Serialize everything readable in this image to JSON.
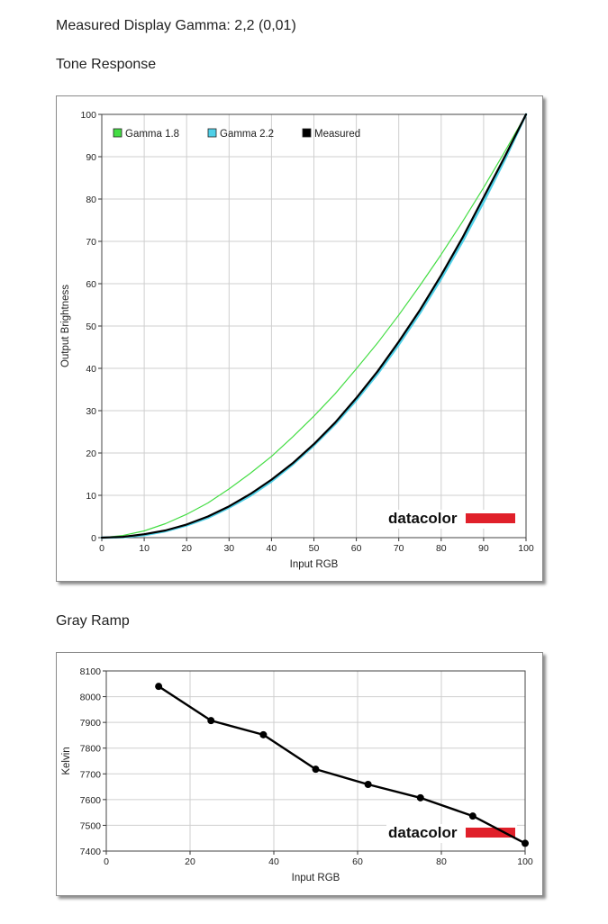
{
  "page": {
    "gamma_heading": "Measured Display Gamma: 2,2 (0,01)",
    "tone_heading": "Tone Response",
    "gray_heading": "Gray Ramp"
  },
  "brand": {
    "logo_text": "datacolor",
    "accent_color": "#e0202a"
  },
  "chart_data": [
    {
      "type": "line",
      "xlabel": "Input RGB",
      "ylabel": "Output Brightness",
      "xlim": [
        0,
        100
      ],
      "ylim": [
        0,
        100
      ],
      "x_ticks": [
        0,
        10,
        20,
        30,
        40,
        50,
        60,
        70,
        80,
        90,
        100
      ],
      "y_ticks": [
        0,
        10,
        20,
        30,
        40,
        50,
        60,
        70,
        80,
        90,
        100
      ],
      "grid": true,
      "legend_position": "top-left",
      "series": [
        {
          "name": "Gamma 1.8",
          "color": "#44dd44",
          "x": [
            0,
            5,
            10,
            15,
            20,
            25,
            30,
            35,
            40,
            45,
            50,
            55,
            60,
            65,
            70,
            75,
            80,
            85,
            90,
            95,
            100
          ],
          "values": [
            0,
            0.5,
            1.6,
            3.3,
            5.5,
            8.2,
            11.5,
            15.2,
            19.2,
            23.8,
            28.7,
            34.0,
            39.9,
            46.0,
            52.6,
            59.6,
            66.9,
            74.6,
            82.7,
            91.2,
            100
          ]
        },
        {
          "name": "Gamma 2.2",
          "color": "#4fd0e8",
          "x": [
            0,
            5,
            10,
            15,
            20,
            25,
            30,
            35,
            40,
            45,
            50,
            55,
            60,
            65,
            70,
            75,
            80,
            85,
            90,
            95,
            100
          ],
          "values": [
            0,
            0.1,
            0.6,
            1.5,
            2.9,
            4.7,
            7.1,
            9.9,
            13.3,
            17.3,
            21.8,
            26.8,
            32.5,
            38.7,
            45.6,
            53.1,
            61.2,
            69.9,
            79.3,
            89.3,
            100
          ]
        },
        {
          "name": "Measured",
          "color": "#000000",
          "x": [
            0,
            5,
            10,
            15,
            20,
            25,
            30,
            35,
            40,
            45,
            50,
            55,
            60,
            65,
            70,
            75,
            80,
            85,
            90,
            95,
            100
          ],
          "values": [
            0,
            0.2,
            0.8,
            1.7,
            3.1,
            5.0,
            7.4,
            10.3,
            13.7,
            17.6,
            22.1,
            27.2,
            33.0,
            39.3,
            46.3,
            53.8,
            62.0,
            70.8,
            80.4,
            90.0,
            100
          ]
        }
      ]
    },
    {
      "type": "line",
      "xlabel": "Input RGB",
      "ylabel": "Kelvin",
      "xlim": [
        0,
        100
      ],
      "ylim": [
        7400,
        8100
      ],
      "x_ticks": [
        0,
        20,
        40,
        60,
        80,
        100
      ],
      "y_ticks": [
        7400,
        7500,
        7600,
        7700,
        7800,
        7900,
        8000,
        8100
      ],
      "grid": true,
      "series": [
        {
          "color": "#000000",
          "x": [
            12.5,
            25,
            37.5,
            50,
            62.5,
            75,
            87.5,
            100
          ],
          "values": [
            8040,
            7907,
            7852,
            7718,
            7659,
            7607,
            7536,
            7430
          ]
        }
      ]
    }
  ]
}
